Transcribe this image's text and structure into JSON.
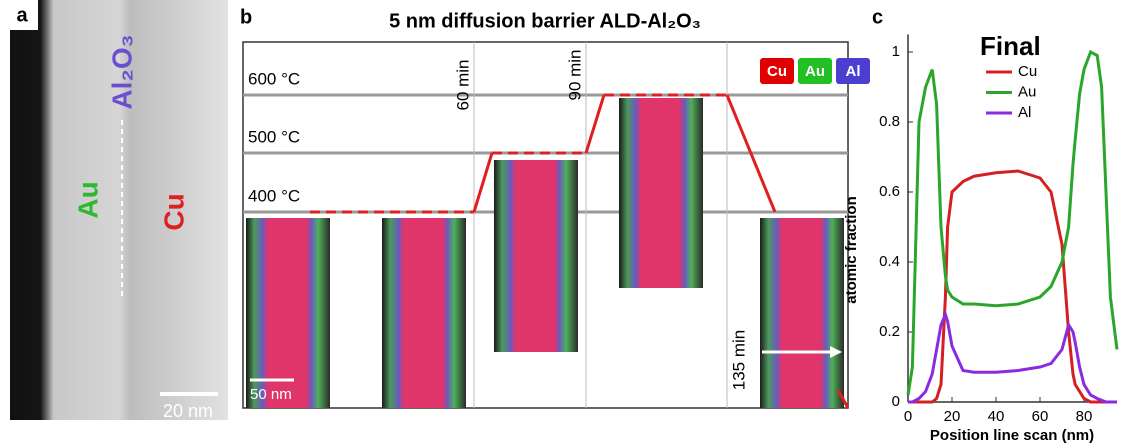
{
  "panel_a": {
    "label": "a",
    "gold": "Au",
    "copper": "Cu",
    "barrier": "Al₂O₃",
    "scale": "20 nm"
  },
  "panel_b": {
    "label": "b",
    "title": "5 nm diffusion barrier ALD-Al₂O₃",
    "temperatures": [
      "600 °C",
      "500 °C",
      "400 °C"
    ],
    "times": [
      "60 min",
      "90 min",
      "135 min"
    ],
    "legend": [
      "Cu",
      "Au",
      "Al"
    ],
    "scale": "50 nm"
  },
  "chart_data": {
    "type": "line",
    "panel_label": "c",
    "title": "Final",
    "x_label": "Position line scan (nm)",
    "y_label": "atomic fraction",
    "x": [
      0,
      2,
      5,
      8,
      11,
      13,
      15,
      17,
      18,
      20,
      25,
      30,
      40,
      50,
      60,
      65,
      70,
      73,
      75,
      76,
      78,
      80,
      83,
      86,
      88,
      90,
      92,
      95
    ],
    "series": [
      {
        "name": "Cu",
        "color": "#d42020",
        "values": [
          0,
          0,
          0,
          0,
          0,
          0.01,
          0.05,
          0.3,
          0.5,
          0.6,
          0.63,
          0.645,
          0.655,
          0.66,
          0.64,
          0.6,
          0.45,
          0.2,
          0.08,
          0.05,
          0.03,
          0.01,
          0,
          0,
          0,
          0,
          0,
          0
        ]
      },
      {
        "name": "Au",
        "color": "#2aa62a",
        "values": [
          0.02,
          0.1,
          0.8,
          0.9,
          0.95,
          0.85,
          0.5,
          0.36,
          0.32,
          0.3,
          0.28,
          0.28,
          0.275,
          0.28,
          0.3,
          0.33,
          0.4,
          0.5,
          0.68,
          0.75,
          0.88,
          0.95,
          1.0,
          0.99,
          0.9,
          0.6,
          0.3,
          0.15
        ]
      },
      {
        "name": "Al",
        "color": "#8a2be2",
        "values": [
          0,
          0,
          0.01,
          0.03,
          0.08,
          0.15,
          0.22,
          0.25,
          0.23,
          0.16,
          0.09,
          0.085,
          0.085,
          0.09,
          0.1,
          0.11,
          0.15,
          0.22,
          0.2,
          0.17,
          0.1,
          0.05,
          0.02,
          0.01,
          0.005,
          0,
          0,
          0
        ]
      }
    ],
    "xlim": [
      0,
      95
    ],
    "ylim": [
      0,
      1.05
    ],
    "xticks": [
      0,
      20,
      40,
      60,
      80
    ],
    "yticks": [
      0,
      0.2,
      0.4,
      0.6,
      0.8,
      1
    ]
  }
}
